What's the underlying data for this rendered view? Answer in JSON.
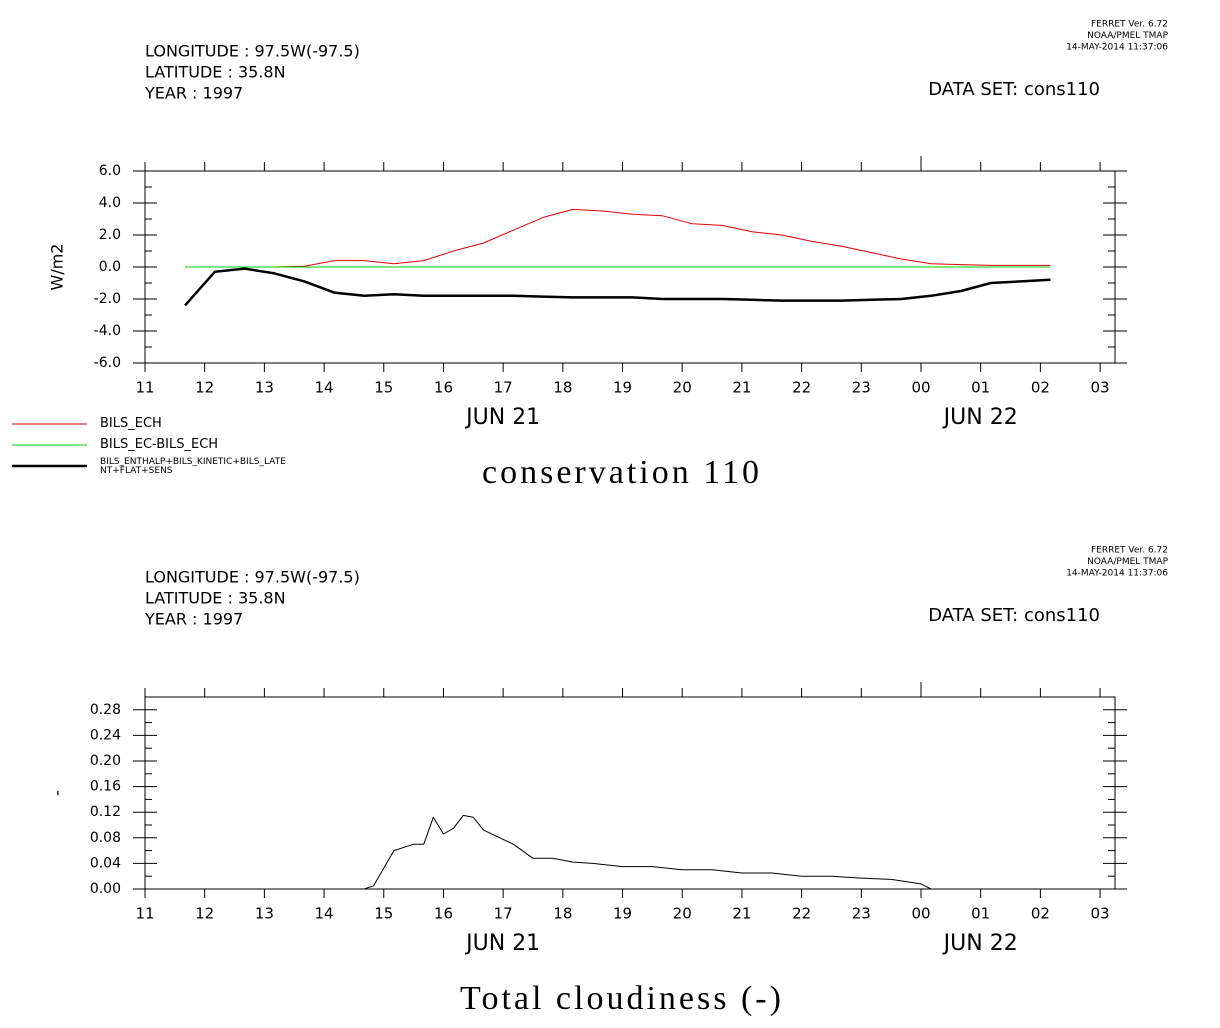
{
  "chart_data": [
    {
      "type": "line",
      "ferret_lines": [
        "FERRET Ver. 6.72",
        "NOAA/PMEL TMAP",
        "14-MAY-2014 11:37:06"
      ],
      "info_lines": [
        "LONGITUDE : 97.5W(-97.5)",
        "LATITUDE : 35.8N",
        "YEAR : 1997"
      ],
      "dataset": "DATA SET: cons110",
      "title": "conservation 110",
      "ylabel": "W/m2",
      "xlim": [
        11,
        27.25
      ],
      "ylim": [
        -6,
        6
      ],
      "xticks": [
        11,
        12,
        13,
        14,
        15,
        16,
        17,
        18,
        19,
        20,
        21,
        22,
        23,
        {
          "value": 24,
          "label": "00"
        },
        {
          "value": 25,
          "label": "01"
        },
        {
          "value": 26,
          "label": "02"
        },
        {
          "value": 27,
          "label": "03"
        }
      ],
      "yticks": [
        {
          "value": -6,
          "label": "-6.0"
        },
        {
          "value": -4,
          "label": "-4.0"
        },
        {
          "value": -2,
          "label": "-2.0"
        },
        {
          "value": 0,
          "label": "0.0"
        },
        {
          "value": 2,
          "label": "2.0"
        },
        {
          "value": 4,
          "label": "4.0"
        },
        {
          "value": 6,
          "label": "6.0"
        }
      ],
      "day_labels": [
        {
          "value": 17,
          "label": "JUN 21"
        },
        {
          "value": 25,
          "label": "JUN 22"
        }
      ],
      "x": [
        11.67,
        12.17,
        12.67,
        13.17,
        13.67,
        14.17,
        14.67,
        15.17,
        15.67,
        16.17,
        16.67,
        17.17,
        17.67,
        18.17,
        18.67,
        19.17,
        19.67,
        20.17,
        20.67,
        21.17,
        21.67,
        22.17,
        22.67,
        23.17,
        23.67,
        24.17,
        24.67,
        25.17,
        25.67,
        26.17
      ],
      "series": [
        {
          "name": "BILS_ECH",
          "color": "#e00000",
          "linewidth": 1,
          "values": [
            0,
            0,
            0,
            0,
            0.05,
            0.4,
            0.4,
            0.2,
            0.4,
            1.0,
            1.5,
            2.3,
            3.1,
            3.6,
            3.5,
            3.3,
            3.2,
            2.7,
            2.6,
            2.2,
            2.0,
            1.6,
            1.3,
            0.9,
            0.5,
            0.2,
            0.15,
            0.1,
            0.1,
            0.1
          ]
        },
        {
          "name": "BILS_EC-BILS_ECH",
          "color": "#00cc00",
          "linewidth": 1,
          "values": [
            0,
            0,
            0,
            0,
            0,
            0,
            0,
            0,
            0,
            0,
            0,
            0,
            0,
            0,
            0,
            0,
            0,
            0,
            0,
            0,
            0,
            0,
            0,
            0,
            0,
            0,
            0,
            0,
            0,
            0
          ]
        },
        {
          "name": "BILS_ENTHALP+BILS_KINETIC+BILS_LATENT+FLAT+SENS",
          "color": "#000000",
          "linewidth": 2.5,
          "values": [
            -2.4,
            -0.3,
            -0.1,
            -0.4,
            -0.9,
            -1.6,
            -1.8,
            -1.7,
            -1.8,
            -1.8,
            -1.8,
            -1.8,
            -1.85,
            -1.9,
            -1.9,
            -1.9,
            -2.0,
            -2.0,
            -2.0,
            -2.05,
            -2.1,
            -2.1,
            -2.1,
            -2.05,
            -2.0,
            -1.8,
            -1.5,
            -1.0,
            -0.9,
            -0.8
          ]
        }
      ]
    },
    {
      "type": "line",
      "ferret_lines": [
        "FERRET Ver. 6.72",
        "NOAA/PMEL TMAP",
        "14-MAY-2014 11:37:06"
      ],
      "info_lines": [
        "LONGITUDE : 97.5W(-97.5)",
        "LATITUDE : 35.8N",
        "YEAR : 1997"
      ],
      "dataset": "DATA SET: cons110",
      "title": "Total cloudiness (-)",
      "ylabel": "-",
      "xlim": [
        11,
        27.25
      ],
      "ylim": [
        0,
        0.3
      ],
      "xticks": [
        11,
        12,
        13,
        14,
        15,
        16,
        17,
        18,
        19,
        20,
        21,
        22,
        23,
        {
          "value": 24,
          "label": "00"
        },
        {
          "value": 25,
          "label": "01"
        },
        {
          "value": 26,
          "label": "02"
        },
        {
          "value": 27,
          "label": "03"
        }
      ],
      "yticks": [
        {
          "value": 0,
          "label": "0.00"
        },
        {
          "value": 0.04,
          "label": "0.04"
        },
        {
          "value": 0.08,
          "label": "0.08"
        },
        {
          "value": 0.12,
          "label": "0.12"
        },
        {
          "value": 0.16,
          "label": "0.16"
        },
        {
          "value": 0.2,
          "label": "0.20"
        },
        {
          "value": 0.24,
          "label": "0.24"
        },
        {
          "value": 0.28,
          "label": "0.28"
        }
      ],
      "day_labels": [
        {
          "value": 17,
          "label": "JUN 21"
        },
        {
          "value": 25,
          "label": "JUN 22"
        }
      ],
      "x": [
        14.67,
        14.83,
        15.17,
        15.5,
        15.67,
        15.83,
        16.0,
        16.17,
        16.33,
        16.5,
        16.67,
        17.17,
        17.5,
        17.83,
        18.17,
        18.5,
        19.0,
        19.5,
        20.0,
        20.5,
        21.0,
        21.5,
        22.0,
        22.5,
        23.0,
        23.5,
        24.0,
        24.17
      ],
      "color": "#000000",
      "values": [
        0,
        0.005,
        0.06,
        0.07,
        0.07,
        0.112,
        0.086,
        0.095,
        0.115,
        0.112,
        0.092,
        0.07,
        0.048,
        0.048,
        0.042,
        0.04,
        0.035,
        0.035,
        0.03,
        0.03,
        0.025,
        0.025,
        0.02,
        0.02,
        0.017,
        0.015,
        0.008,
        0
      ]
    }
  ]
}
